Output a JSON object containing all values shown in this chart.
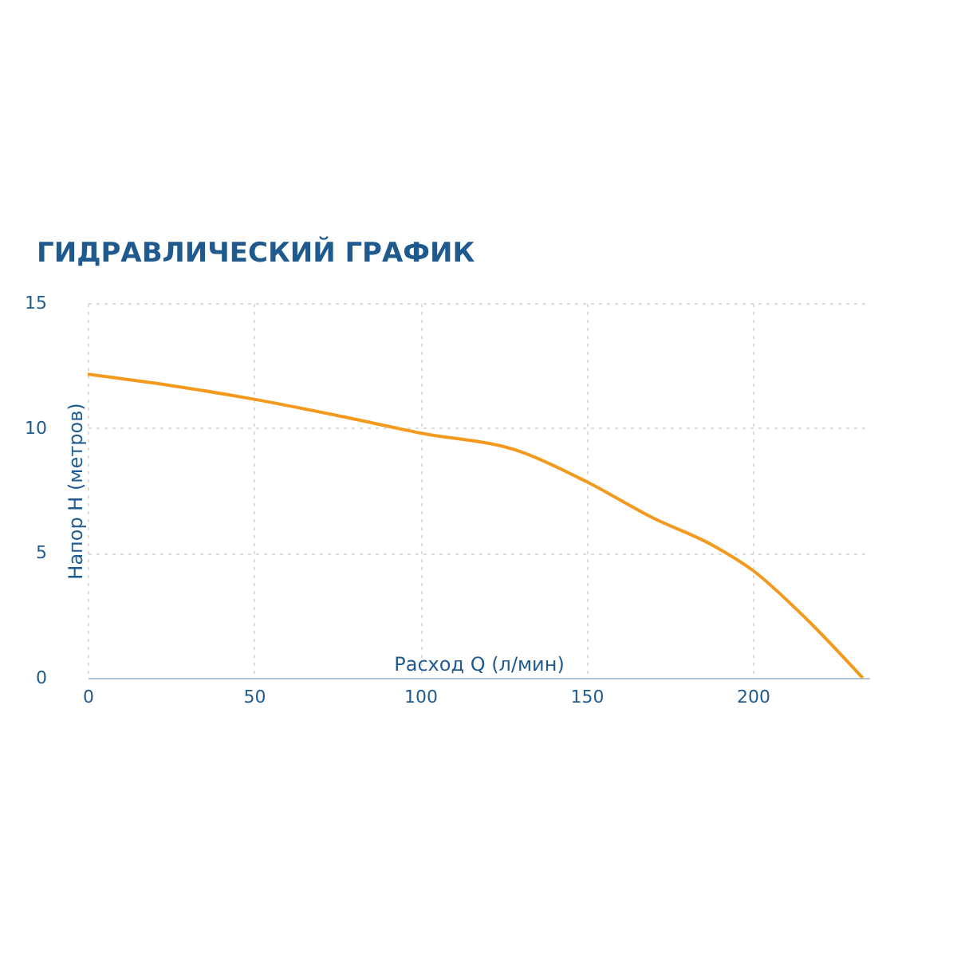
{
  "chart_data": {
    "type": "line",
    "title": "ГИДРАВЛИЧЕСКИЙ ГРАФИК",
    "xlabel": "Расход Q (л/мин)",
    "ylabel": "Напор Н (метров)",
    "x": [
      0,
      25,
      50,
      75,
      100,
      130,
      150,
      170,
      188,
      200,
      215,
      233
    ],
    "series": [
      {
        "color": "#f39a1e",
        "values": [
          12.15,
          11.7,
          11.15,
          10.5,
          9.8,
          9.06,
          7.85,
          6.4,
          5.3,
          4.3,
          2.5,
          0
        ]
      }
    ],
    "xlim": [
      0,
      235
    ],
    "ylim": [
      0,
      15
    ],
    "xticks": [
      0,
      50,
      100,
      150,
      200
    ],
    "yticks": [
      0,
      5,
      10,
      15
    ],
    "grid": true,
    "marker": "none",
    "line_style": "solid"
  }
}
